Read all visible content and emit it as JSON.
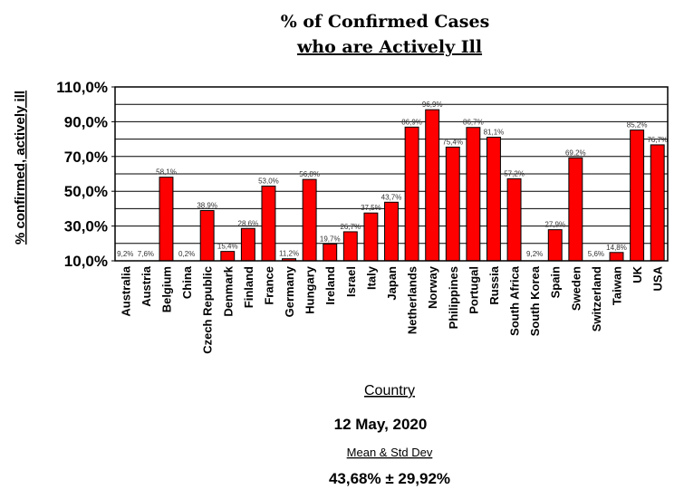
{
  "chart_data": {
    "type": "bar",
    "title": "% of Confirmed Cases",
    "subtitle": "who are Actively Ill",
    "xlabel": "Country",
    "ylabel": "% confirmed, actively ill",
    "ylim": [
      10,
      110
    ],
    "yticks": [
      "110,0%",
      "90,0%",
      "70,0%",
      "50,0%",
      "30,0%",
      "10,0%"
    ],
    "ytick_values": [
      110,
      90,
      70,
      50,
      30,
      10
    ],
    "grid": true,
    "bar_color": "#ff0000",
    "categories": [
      "Australia",
      "Austria",
      "Belgium",
      "China",
      "Czech Republic",
      "Denmark",
      "Finland",
      "France",
      "Germany",
      "Hungary",
      "Ireland",
      "Israel",
      "Italy",
      "Japan",
      "Netherlands",
      "Norway",
      "Philippines",
      "Portugal",
      "Russia",
      "South Africa",
      "South Korea",
      "Spain",
      "Sweden",
      "Switzerland",
      "Taiwan",
      "UK",
      "USA"
    ],
    "values": [
      9.2,
      7.6,
      58.1,
      0.2,
      38.9,
      15.4,
      28.6,
      53.0,
      11.2,
      56.8,
      19.7,
      26.7,
      37.5,
      43.7,
      86.9,
      96.9,
      75.4,
      86.7,
      81.1,
      57.2,
      9.2,
      27.9,
      69.2,
      5.6,
      14.8,
      85.2,
      76.7
    ],
    "data_labels": [
      "9,2%",
      "7,6%",
      "58,1%",
      "0,2%",
      "38,9%",
      "15,4%",
      "28,6%",
      "53,0%",
      "11,2%",
      "56,8%",
      "19,7%",
      "26,7%",
      "37,5%",
      "43,7%",
      "86,9%",
      "96,9%",
      "75,4%",
      "86,7%",
      "81,1%",
      "57,2%",
      "9,2%",
      "27,9%",
      "69,2%",
      "5,6%",
      "14,8%",
      "85,2%",
      "76,7%"
    ]
  },
  "footer": {
    "date": "12 May, 2020",
    "mean_label": "Mean & Std Dev",
    "mean_value": "43,68% ± 29,92%"
  }
}
